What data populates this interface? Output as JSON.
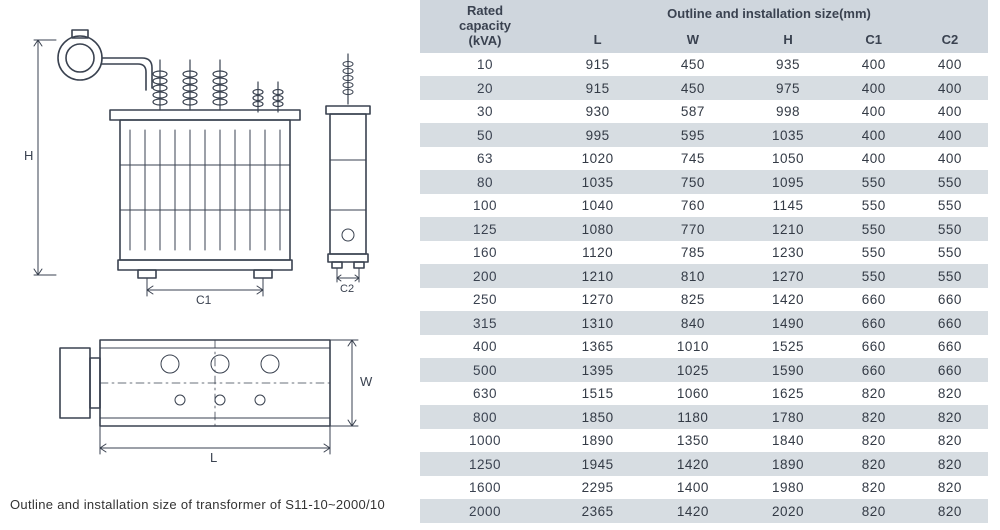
{
  "caption": "Outline and installation size of transformer of S11-10~2000/10",
  "table": {
    "header_group_label": "Outline and installation size(mm)",
    "first_col_label_line1": "Rated",
    "first_col_label_line2": "capacity",
    "first_col_label_line3": "(kVA)",
    "columns": [
      "L",
      "W",
      "H",
      "C1",
      "C2"
    ],
    "rows": [
      [
        "10",
        "915",
        "450",
        "935",
        "400",
        "400"
      ],
      [
        "20",
        "915",
        "450",
        "975",
        "400",
        "400"
      ],
      [
        "30",
        "930",
        "587",
        "998",
        "400",
        "400"
      ],
      [
        "50",
        "995",
        "595",
        "1035",
        "400",
        "400"
      ],
      [
        "63",
        "1020",
        "745",
        "1050",
        "400",
        "400"
      ],
      [
        "80",
        "1035",
        "750",
        "1095",
        "550",
        "550"
      ],
      [
        "100",
        "1040",
        "760",
        "1145",
        "550",
        "550"
      ],
      [
        "125",
        "1080",
        "770",
        "1210",
        "550",
        "550"
      ],
      [
        "160",
        "1120",
        "785",
        "1230",
        "550",
        "550"
      ],
      [
        "200",
        "1210",
        "810",
        "1270",
        "550",
        "550"
      ],
      [
        "250",
        "1270",
        "825",
        "1420",
        "660",
        "660"
      ],
      [
        "315",
        "1310",
        "840",
        "1490",
        "660",
        "660"
      ],
      [
        "400",
        "1365",
        "1010",
        "1525",
        "660",
        "660"
      ],
      [
        "500",
        "1395",
        "1025",
        "1590",
        "660",
        "660"
      ],
      [
        "630",
        "1515",
        "1060",
        "1625",
        "820",
        "820"
      ],
      [
        "800",
        "1850",
        "1180",
        "1780",
        "820",
        "820"
      ],
      [
        "1000",
        "1890",
        "1350",
        "1840",
        "820",
        "820"
      ],
      [
        "1250",
        "1945",
        "1420",
        "1890",
        "820",
        "820"
      ],
      [
        "1600",
        "2295",
        "1400",
        "1980",
        "820",
        "820"
      ],
      [
        "2000",
        "2365",
        "1420",
        "2020",
        "820",
        "820"
      ]
    ],
    "header_bg": "#cfd6dd",
    "row_alt_bg": "#d7dde2",
    "row_plain_bg": "#ffffff",
    "text_color": "#333a45",
    "font_size": 13.5
  },
  "diagram": {
    "labels": {
      "H": "H",
      "C1": "C1",
      "C2": "C2",
      "L": "L",
      "W": "W"
    },
    "stroke": "#3a4250",
    "stroke_width": 1.6,
    "thin_stroke_width": 1.0
  }
}
